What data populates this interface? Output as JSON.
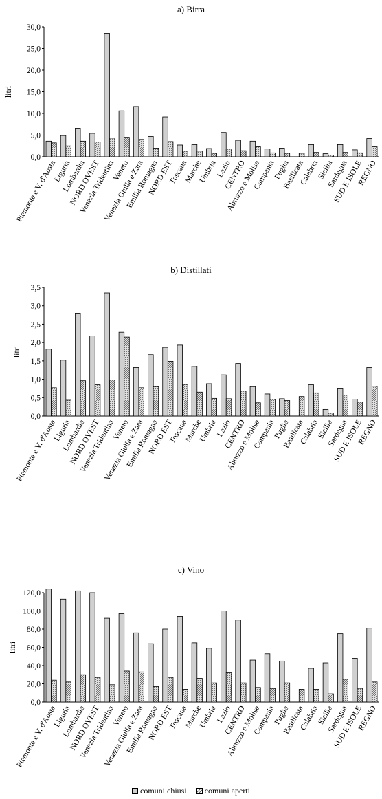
{
  "colors": {
    "closed": "#d0d0d0",
    "open_hatch": "#707070",
    "axis": "#000000"
  },
  "legend": {
    "closed_label": "comuni chiusi",
    "open_label": "comuni aperti",
    "position": "bottom-center"
  },
  "chart_data": [
    {
      "type": "bar",
      "title": "a) Birra",
      "ylabel": "litri",
      "ylim": [
        0,
        30
      ],
      "yticks": [
        "0,0",
        "5,0",
        "10,0",
        "15,0",
        "20,0",
        "25,0",
        "30,0"
      ],
      "categories": [
        "Piemonte e V. d'Aosta",
        "Liguria",
        "Lombardia",
        "NORD OVEST",
        "Venezia Tridentina",
        "Veneto",
        "Venezia Giulia e Zara",
        "Emilia Romagna",
        "NORD EST",
        "Toscana",
        "Marche",
        "Umbria",
        "Lazio",
        "CENTRO",
        "Abruzzo e Molise",
        "Campania",
        "Puglia",
        "Basilicata",
        "Calabria",
        "Sicilia",
        "Sardegna",
        "SUD E ISOLE",
        "REGNO"
      ],
      "series": [
        {
          "name": "comuni chiusi",
          "values": [
            3.6,
            4.9,
            6.6,
            5.4,
            28.5,
            10.6,
            11.6,
            4.7,
            9.2,
            2.7,
            2.8,
            1.9,
            5.6,
            3.8,
            3.6,
            1.8,
            2.0,
            0.0,
            2.8,
            0.7,
            2.8,
            1.6,
            4.2
          ]
        },
        {
          "name": "comuni aperti",
          "values": [
            3.2,
            2.5,
            3.6,
            3.4,
            4.3,
            4.5,
            4.0,
            2.0,
            3.5,
            1.3,
            1.3,
            0.8,
            1.8,
            1.4,
            2.3,
            0.9,
            0.8,
            0.8,
            1.0,
            0.4,
            1.0,
            0.9,
            2.3
          ]
        }
      ],
      "grid": false,
      "legend": "bottom-center"
    },
    {
      "type": "bar",
      "title": "b) Distillati",
      "ylabel": "litri",
      "ylim": [
        0,
        3.5
      ],
      "yticks": [
        "0,0",
        "0,5",
        "1,0",
        "1,5",
        "2,0",
        "2,5",
        "3,0",
        "3,5"
      ],
      "categories": [
        "Piemonte e V. d'Aosta",
        "Liguria",
        "Lombardia",
        "NORD OVEST",
        "Venezia Tridentina",
        "Veneto",
        "Venezia Giulia e Zara",
        "Emilia Romagna",
        "NORD EST",
        "Toscana",
        "Marche",
        "Umbria",
        "Lazio",
        "CENTRO",
        "Abruzzo e Molise",
        "Campania",
        "Puglia",
        "Basilicata",
        "Calabria",
        "Sicilia",
        "Sardegna",
        "SUD E ISOLE",
        "REGNO"
      ],
      "series": [
        {
          "name": "comuni chiusi",
          "values": [
            1.82,
            1.52,
            2.8,
            2.18,
            3.35,
            2.28,
            1.32,
            1.67,
            1.87,
            1.93,
            1.35,
            0.88,
            1.12,
            1.43,
            0.8,
            0.6,
            0.47,
            0.0,
            0.85,
            0.18,
            0.74,
            0.46,
            1.32
          ]
        },
        {
          "name": "comuni aperti",
          "values": [
            0.77,
            0.43,
            0.96,
            0.85,
            0.98,
            2.15,
            0.77,
            0.8,
            1.49,
            0.86,
            0.65,
            0.48,
            0.47,
            0.68,
            0.36,
            0.46,
            0.42,
            0.53,
            0.63,
            0.08,
            0.57,
            0.38,
            0.81
          ]
        }
      ],
      "grid": false,
      "legend": "bottom-center"
    },
    {
      "type": "bar",
      "title": "c) Vino",
      "ylabel": "litri",
      "ylim": [
        0,
        120
      ],
      "yticks": [
        "0,0",
        "20,0",
        "40,0",
        "60,0",
        "80,0",
        "100,0",
        "120,0"
      ],
      "categories": [
        "Piemonte e V. d'Aosta",
        "Liguria",
        "Lombardia",
        "NORD OVEST",
        "Venezia Tridentina",
        "Veneto",
        "Venezia Giulia e Zara",
        "Emilia Romagna",
        "NORD EST",
        "Toscana",
        "Marche",
        "Umbria",
        "Lazio",
        "CENTRO",
        "Abruzzo e Molise",
        "Campania",
        "Puglia",
        "Basilicata",
        "Calabria",
        "Sicilia",
        "Sardegna",
        "SUD E ISOLE",
        "REGNO"
      ],
      "series": [
        {
          "name": "comuni chiusi",
          "values": [
            124,
            113,
            122,
            120,
            92,
            97,
            76,
            64,
            80,
            94,
            65,
            59,
            100,
            90,
            46,
            53,
            45,
            0,
            37,
            43,
            75,
            48,
            81
          ]
        },
        {
          "name": "comuni aperti",
          "values": [
            24,
            22,
            30,
            27,
            19,
            34,
            33,
            17,
            27,
            14,
            26,
            21,
            32,
            21,
            16,
            15,
            21,
            14,
            14,
            9,
            25,
            15,
            22
          ]
        }
      ],
      "grid": false,
      "legend": "bottom-center"
    }
  ]
}
